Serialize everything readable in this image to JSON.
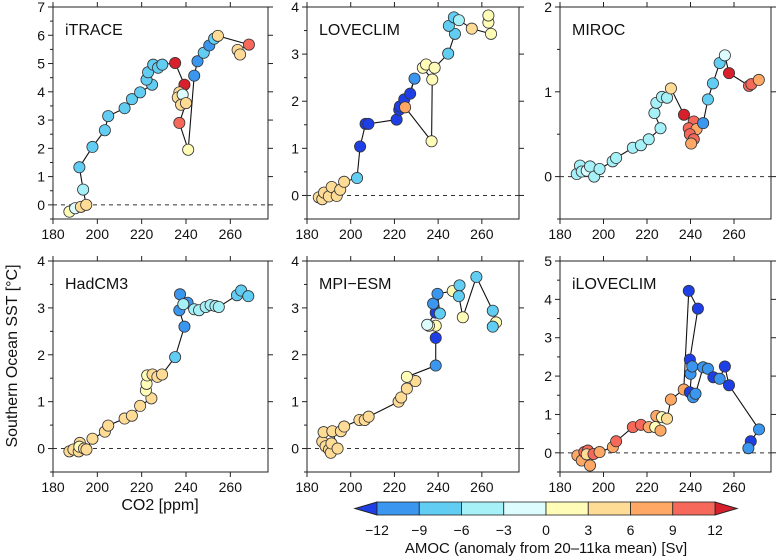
{
  "chart_data": {
    "type": "scatter",
    "ylabel": "Southern Ocean SST [°C]",
    "xlabel": "CO2 [ppm]",
    "xlim": [
      180,
      277
    ],
    "xticks": [
      180,
      200,
      220,
      240,
      260
    ],
    "point_format": "[CO2 ppm, SST anomaly °C, AMOC anomaly Sv]",
    "colorbar": {
      "title": "AMOC (anomaly from 20–11ka mean) [Sv]",
      "ticks": [
        "−12",
        "−9",
        "−6",
        "−3",
        "0",
        "3",
        "6",
        "9",
        "12"
      ],
      "under_color": "#1f3fe6",
      "over_color": "#d8202c",
      "bins": [
        {
          "from": -12,
          "to": -9,
          "color": "#3a96ee"
        },
        {
          "from": -9,
          "to": -6,
          "color": "#62cdf2"
        },
        {
          "from": -6,
          "to": -3,
          "color": "#a6f0f8"
        },
        {
          "from": -3,
          "to": 0,
          "color": "#dcfcfe"
        },
        {
          "from": 0,
          "to": 3,
          "color": "#fffcb8"
        },
        {
          "from": 3,
          "to": 6,
          "color": "#ffdc96"
        },
        {
          "from": 6,
          "to": 9,
          "color": "#ffa866"
        },
        {
          "from": 9,
          "to": 12,
          "color": "#f6685a"
        }
      ]
    },
    "panels": [
      {
        "title": "iTRACE",
        "ylim": [
          -0.5,
          7
        ],
        "yticks": [
          0,
          1,
          2,
          3,
          4,
          5,
          6,
          7
        ],
        "points": [
          [
            187.4,
            -0.24,
            1.5
          ],
          [
            190,
            -0.12,
            -1.5
          ],
          [
            192.6,
            -0.07,
            4
          ],
          [
            195,
            0,
            5
          ],
          [
            193.6,
            0.54,
            -5
          ],
          [
            191.9,
            1.33,
            -7
          ],
          [
            197.8,
            2.05,
            -7
          ],
          [
            203.4,
            2.64,
            -7
          ],
          [
            204.9,
            3.14,
            -7
          ],
          [
            212.3,
            3.42,
            -7
          ],
          [
            215.6,
            3.74,
            -7
          ],
          [
            219.3,
            3.98,
            -7
          ],
          [
            224.7,
            4.25,
            -7
          ],
          [
            222.2,
            4.43,
            -7
          ],
          [
            222.9,
            4.69,
            -7
          ],
          [
            225.2,
            4.96,
            -7
          ],
          [
            227.4,
            4.85,
            -7
          ],
          [
            229.3,
            4.96,
            -7
          ],
          [
            235.1,
            5.02,
            13
          ],
          [
            239.3,
            4.25,
            13
          ],
          [
            237,
            3.98,
            5
          ],
          [
            236.3,
            3.8,
            5
          ],
          [
            238.5,
            3.9,
            -1.5
          ],
          [
            237.8,
            3.54,
            6
          ],
          [
            240,
            3.6,
            5
          ],
          [
            237,
            2.9,
            10
          ],
          [
            241,
            1.95,
            3
          ],
          [
            243.7,
            4.57,
            -10
          ],
          [
            245.2,
            5.08,
            -10
          ],
          [
            248,
            5.38,
            -7
          ],
          [
            250.5,
            5.64,
            -10
          ],
          [
            252.7,
            5.88,
            -7
          ],
          [
            254.4,
            5.98,
            6
          ],
          [
            268.4,
            5.67,
            10
          ],
          [
            263.3,
            5.48,
            6
          ],
          [
            264.4,
            5.32,
            6
          ]
        ]
      },
      {
        "title": "LOVECLIM",
        "ylim": [
          -0.5,
          4
        ],
        "yticks": [
          0,
          1,
          2,
          3,
          4
        ],
        "points": [
          [
            185.4,
            -0.04,
            6
          ],
          [
            187,
            -0.08,
            6
          ],
          [
            187.8,
            0.06,
            6
          ],
          [
            190,
            -0.02,
            6
          ],
          [
            191.3,
            0.18,
            6
          ],
          [
            193.6,
            -0.01,
            6
          ],
          [
            195.2,
            0.12,
            6
          ],
          [
            197,
            0.29,
            6
          ],
          [
            202.9,
            0.37,
            -7
          ],
          [
            204.3,
            1.04,
            -12.5
          ],
          [
            206.8,
            1.52,
            -12.5
          ],
          [
            208.1,
            1.52,
            -12.5
          ],
          [
            221,
            1.61,
            -12.5
          ],
          [
            222.2,
            1.82,
            -12.5
          ],
          [
            222.5,
            1.89,
            -12.5
          ],
          [
            224.5,
            2.04,
            -12.5
          ],
          [
            227.2,
            2.16,
            -12.5
          ],
          [
            229.2,
            2.48,
            -10
          ],
          [
            224.9,
            1.87,
            7
          ],
          [
            237,
            1.15,
            3
          ],
          [
            237.3,
            2.46,
            3
          ],
          [
            233,
            2.71,
            3
          ],
          [
            234.5,
            2.78,
            3
          ],
          [
            238.4,
            2.71,
            1.5
          ],
          [
            244.6,
            3.01,
            -6
          ],
          [
            247.7,
            3.43,
            -6
          ],
          [
            244.9,
            3.6,
            -6
          ],
          [
            247.2,
            3.78,
            -6
          ],
          [
            249.5,
            3.72,
            -4
          ],
          [
            255.4,
            3.54,
            4
          ],
          [
            264.2,
            3.43,
            2
          ],
          [
            263,
            3.67,
            2
          ],
          [
            263,
            3.82,
            2
          ]
        ]
      },
      {
        "title": "MIROC",
        "ylim": [
          -0.5,
          2
        ],
        "yticks": [
          0,
          1,
          2
        ],
        "points": [
          [
            187.7,
            0.03,
            -4.5
          ],
          [
            189.2,
            0.13,
            -4.5
          ],
          [
            190,
            0.06,
            -4.5
          ],
          [
            192.3,
            0.07,
            -1.5
          ],
          [
            193.8,
            0.12,
            -4.5
          ],
          [
            195.7,
            0,
            -4.5
          ],
          [
            198.2,
            0.09,
            -4.5
          ],
          [
            204.2,
            0.18,
            -4.5
          ],
          [
            205.8,
            0.22,
            -4.5
          ],
          [
            213.5,
            0.34,
            -4.5
          ],
          [
            217.2,
            0.37,
            -4.5
          ],
          [
            220.8,
            0.44,
            -4.5
          ],
          [
            226.2,
            0.57,
            -4.5
          ],
          [
            223.4,
            0.75,
            -4.5
          ],
          [
            224.3,
            0.87,
            -4.5
          ],
          [
            226.9,
            0.94,
            -4.5
          ],
          [
            229.2,
            0.93,
            -4.5
          ],
          [
            231,
            1.04,
            4
          ],
          [
            237,
            0.73,
            13
          ],
          [
            241.5,
            0.65,
            10
          ],
          [
            239.2,
            0.57,
            10
          ],
          [
            242.8,
            0.56,
            7
          ],
          [
            239.7,
            0.5,
            10
          ],
          [
            241.5,
            0.44,
            10
          ],
          [
            240.3,
            0.39,
            7
          ],
          [
            245.8,
            0.63,
            -10
          ],
          [
            248,
            0.91,
            -7
          ],
          [
            250.3,
            1.1,
            -7
          ],
          [
            253.4,
            1.34,
            -7
          ],
          [
            255.8,
            1.43,
            -1.5
          ],
          [
            257.7,
            1.22,
            13
          ],
          [
            266.9,
            1.07,
            10
          ],
          [
            268,
            1.09,
            10
          ],
          [
            271.4,
            1.14,
            7
          ]
        ]
      },
      {
        "title": "HadCM3",
        "ylim": [
          -0.5,
          4
        ],
        "yticks": [
          0,
          1,
          2,
          3,
          4
        ],
        "points": [
          [
            187.4,
            -0.06,
            4.5
          ],
          [
            189.2,
            -0.02,
            4.5
          ],
          [
            191.6,
            -0.06,
            4.5
          ],
          [
            192.1,
            0.12,
            4.5
          ],
          [
            191.9,
            0.04,
            1.5
          ],
          [
            194,
            0,
            4.5
          ],
          [
            195.1,
            -0.02,
            4.5
          ],
          [
            197.8,
            0.21,
            4.5
          ],
          [
            203.4,
            0.36,
            4.5
          ],
          [
            204.9,
            0.49,
            4.5
          ],
          [
            212.3,
            0.64,
            4.5
          ],
          [
            215.6,
            0.7,
            4.5
          ],
          [
            219.3,
            0.91,
            4.5
          ],
          [
            224.4,
            1.07,
            4.5
          ],
          [
            221.9,
            1.24,
            1.5
          ],
          [
            222.2,
            1.38,
            1.5
          ],
          [
            222.5,
            1.56,
            1.5
          ],
          [
            224.9,
            1.58,
            4.5
          ],
          [
            227.1,
            1.53,
            4.5
          ],
          [
            229.2,
            1.58,
            4.5
          ],
          [
            235.1,
            1.95,
            -7
          ],
          [
            239.3,
            2.6,
            -10
          ],
          [
            237,
            2.95,
            -10
          ],
          [
            237.3,
            3.29,
            -10
          ],
          [
            240.7,
            3.11,
            -10
          ],
          [
            238.8,
            3.08,
            -4.5
          ],
          [
            243.7,
            2.97,
            -4.5
          ],
          [
            245.9,
            2.95,
            -4.5
          ],
          [
            248.9,
            3.02,
            -4.5
          ],
          [
            251.1,
            3.06,
            -4.5
          ],
          [
            253.3,
            3.04,
            -4.5
          ],
          [
            254.8,
            3.02,
            -4.5
          ],
          [
            263,
            3.27,
            -6
          ],
          [
            264.9,
            3.37,
            -6
          ],
          [
            268.1,
            3.25,
            -6
          ]
        ]
      },
      {
        "title": "MPI−ESM",
        "ylim": [
          -0.5,
          4
        ],
        "yticks": [
          0,
          1,
          2,
          3,
          4
        ],
        "points": [
          [
            187,
            0.15,
            4.5
          ],
          [
            187.6,
            0.35,
            4.5
          ],
          [
            188.5,
            0.05,
            4.5
          ],
          [
            190.1,
            -0.02,
            4.5
          ],
          [
            190.9,
            -0.09,
            4.5
          ],
          [
            191.2,
            0.11,
            4.5
          ],
          [
            194,
            0,
            4.5
          ],
          [
            191.6,
            0.37,
            4.5
          ],
          [
            195.5,
            0.37,
            4.5
          ],
          [
            197,
            0.47,
            4.5
          ],
          [
            204,
            0.61,
            4.5
          ],
          [
            206.4,
            0.61,
            4.5
          ],
          [
            208.2,
            0.68,
            4.5
          ],
          [
            221.9,
            1,
            4.5
          ],
          [
            223.1,
            1.09,
            4.5
          ],
          [
            225.7,
            1.28,
            4.5
          ],
          [
            229.6,
            1.44,
            4.5
          ],
          [
            225.7,
            1.53,
            1.5
          ],
          [
            238.9,
            1.77,
            -10
          ],
          [
            238.9,
            2.36,
            -12.5
          ],
          [
            238.9,
            2.62,
            1.5
          ],
          [
            235.8,
            2.62,
            1.5
          ],
          [
            235,
            2.64,
            -1.5
          ],
          [
            238.9,
            2.9,
            -12.5
          ],
          [
            237.7,
            3.09,
            -10
          ],
          [
            240.8,
            2.88,
            -7
          ],
          [
            239.7,
            3.3,
            -10
          ],
          [
            246.7,
            3.36,
            1.5
          ],
          [
            249.8,
            3.48,
            -7
          ],
          [
            249.5,
            3.25,
            -7
          ],
          [
            251.3,
            2.8,
            3
          ],
          [
            257.5,
            3.66,
            -7
          ],
          [
            265,
            2.94,
            -7
          ],
          [
            266.5,
            2.69,
            3
          ],
          [
            265,
            2.6,
            -7
          ]
        ]
      },
      {
        "title": "iLOVECLIM",
        "ylim": [
          -0.5,
          5
        ],
        "yticks": [
          0,
          1,
          2,
          3,
          4,
          5
        ],
        "points": [
          [
            188,
            -0.07,
            7.5
          ],
          [
            190,
            -0.2,
            7.5
          ],
          [
            191.2,
            0.02,
            10
          ],
          [
            192.8,
            0.06,
            10
          ],
          [
            192.3,
            -0.04,
            4.5
          ],
          [
            193.8,
            -0.33,
            7.5
          ],
          [
            195.4,
            -0.03,
            10
          ],
          [
            198.2,
            0.02,
            7.5
          ],
          [
            204.3,
            0.15,
            7.5
          ],
          [
            205.8,
            0.3,
            10
          ],
          [
            213.5,
            0.67,
            10
          ],
          [
            217.2,
            0.73,
            10
          ],
          [
            220.8,
            0.67,
            7.5
          ],
          [
            223.8,
            0.67,
            1.5
          ],
          [
            226.2,
            0.58,
            7.5
          ],
          [
            224.3,
            0.96,
            7.5
          ],
          [
            226.9,
            0.93,
            3
          ],
          [
            229.2,
            0.89,
            4.5
          ],
          [
            231,
            1.39,
            7.5
          ],
          [
            236.9,
            1.65,
            7.5
          ],
          [
            239.2,
            4.22,
            -12.5
          ],
          [
            243.4,
            3.76,
            -12.5
          ],
          [
            239.7,
            2.43,
            -12.5
          ],
          [
            240,
            2.06,
            -10
          ],
          [
            240.8,
            2.25,
            -10
          ],
          [
            239.7,
            1.58,
            -12.5
          ],
          [
            241.2,
            1.45,
            -10
          ],
          [
            242.3,
            1.54,
            -10
          ],
          [
            245.8,
            2.23,
            -10
          ],
          [
            248,
            2.19,
            -10
          ],
          [
            250.5,
            1.97,
            -12.5
          ],
          [
            253.4,
            1.93,
            -10
          ],
          [
            255.8,
            2.25,
            -12.5
          ],
          [
            257.7,
            1.76,
            -12.5
          ],
          [
            271.5,
            0.61,
            -10
          ],
          [
            267.7,
            0.3,
            -12.5
          ],
          [
            266.6,
            0.12,
            -10
          ]
        ]
      }
    ]
  }
}
